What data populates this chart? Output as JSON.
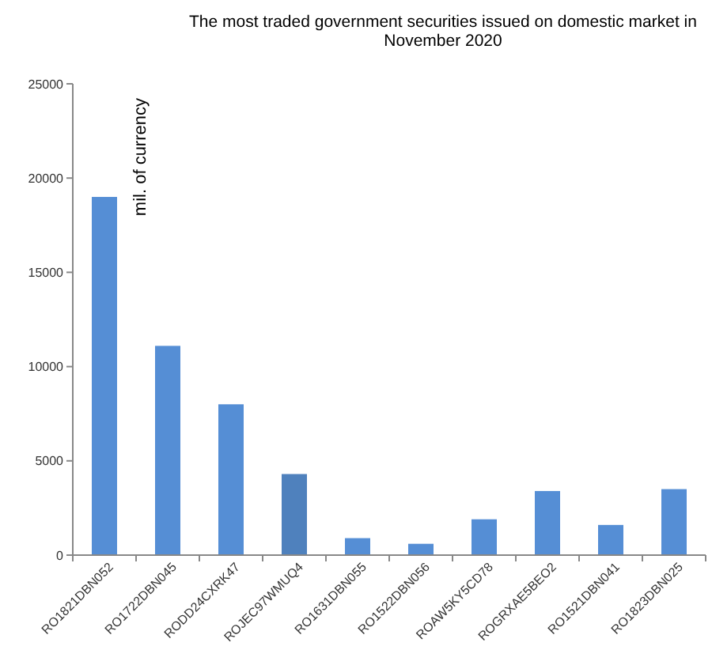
{
  "chart_data": {
    "type": "bar",
    "title": "The most  traded government securities issued on domestic market in November 2020",
    "ylabel": "mil. of currency",
    "categories": [
      "RO1821DBN052",
      "RO1722DBN045",
      "RODD24CXRK47",
      "ROJEC97WMUQ4",
      "RO1631DBN055",
      "RO1522DBN056",
      "ROAW5KY5CD78",
      "ROGRXAE5BEO2",
      "RO1521DBN041",
      "RO1823DBN025"
    ],
    "values": [
      19000,
      11100,
      8000,
      4300,
      900,
      600,
      1900,
      3400,
      1600,
      3500
    ],
    "colors": [
      "#558ed5",
      "#558ed5",
      "#558ed5",
      "#4f81bd",
      "#558ed5",
      "#558ed5",
      "#558ed5",
      "#558ed5",
      "#558ed5",
      "#558ed5"
    ],
    "ylim": [
      0,
      25000
    ],
    "yticks": [
      0,
      5000,
      10000,
      15000,
      20000,
      25000
    ],
    "grid": false
  }
}
